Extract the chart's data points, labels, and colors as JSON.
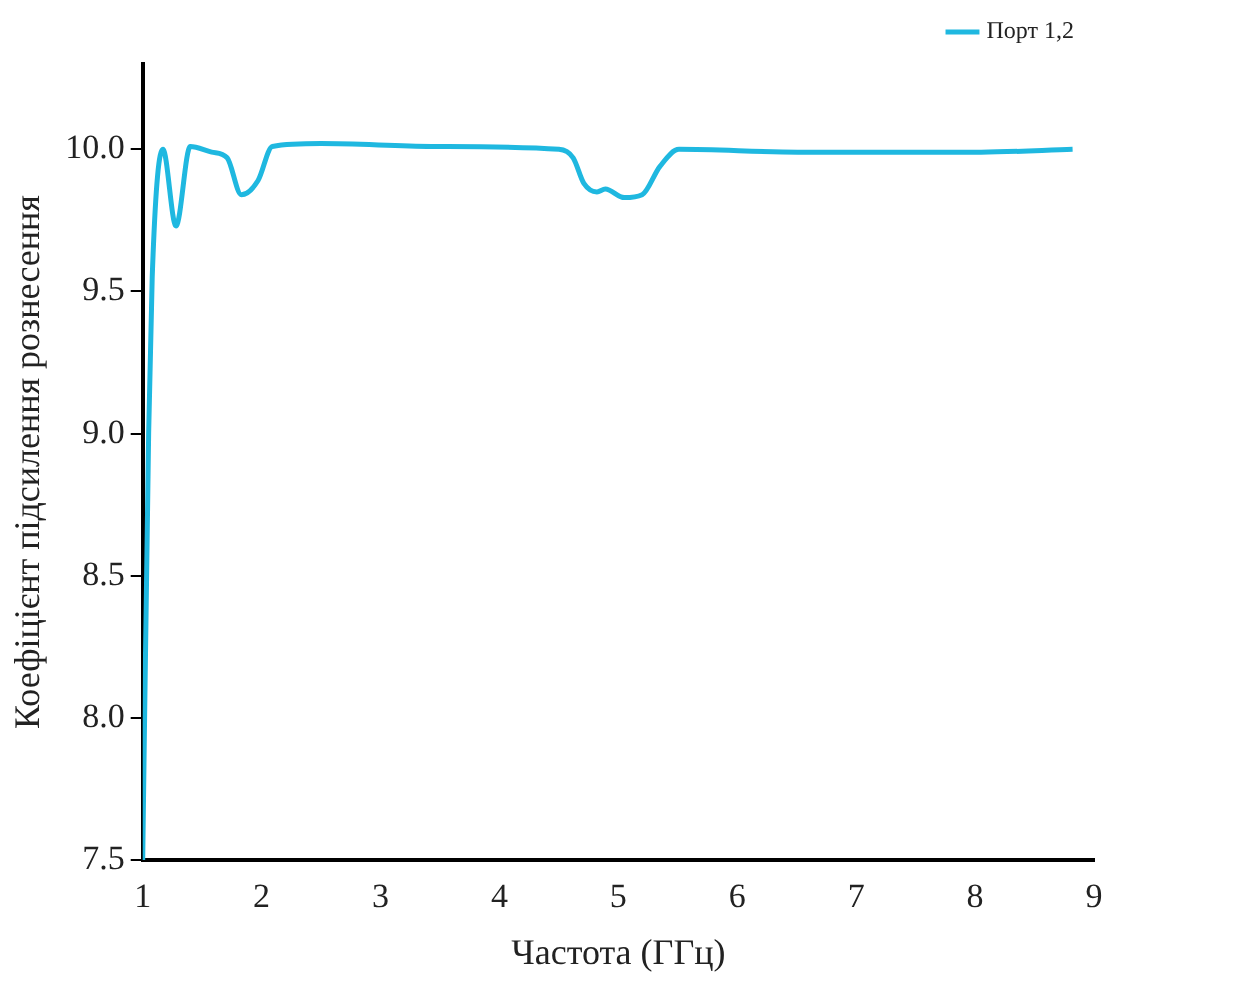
{
  "chart_data": {
    "type": "line",
    "xlabel": "Частота (ГГц)",
    "ylabel": "Коефіцієнт підсилення рознесення",
    "xlim": [
      1,
      9
    ],
    "xticks": [
      1,
      2,
      3,
      4,
      5,
      6,
      7,
      8,
      9
    ],
    "ylim": [
      7.5,
      10.3
    ],
    "yticks": [
      7.5,
      {
        "value": 8,
        "label": "8.0"
      },
      8.5,
      {
        "value": 9,
        "label": "9.0"
      },
      9.5,
      {
        "value": 10,
        "label": "10.0"
      }
    ],
    "grid": false,
    "legend": "top right",
    "marker": "none",
    "line_style": "solid",
    "series": [
      {
        "name": "Порт 1,2",
        "color": "#1fb8e0",
        "x": [
          1.0,
          1.05,
          1.08,
          1.17,
          1.28,
          1.4,
          1.58,
          1.71,
          1.83,
          1.97,
          2.09,
          2.5,
          3.43,
          4.5,
          4.62,
          4.71,
          4.82,
          4.89,
          5.05,
          5.2,
          5.35,
          5.51,
          6.51,
          6.97,
          8.05,
          8.82
        ],
        "values": [
          7.5,
          9.0,
          9.55,
          10.0,
          9.73,
          10.01,
          9.99,
          9.97,
          9.84,
          9.89,
          10.01,
          10.02,
          10.01,
          10.0,
          9.97,
          9.88,
          9.85,
          9.86,
          9.83,
          9.84,
          9.94,
          10.0,
          9.99,
          9.99,
          9.99,
          10.0
        ]
      }
    ]
  }
}
